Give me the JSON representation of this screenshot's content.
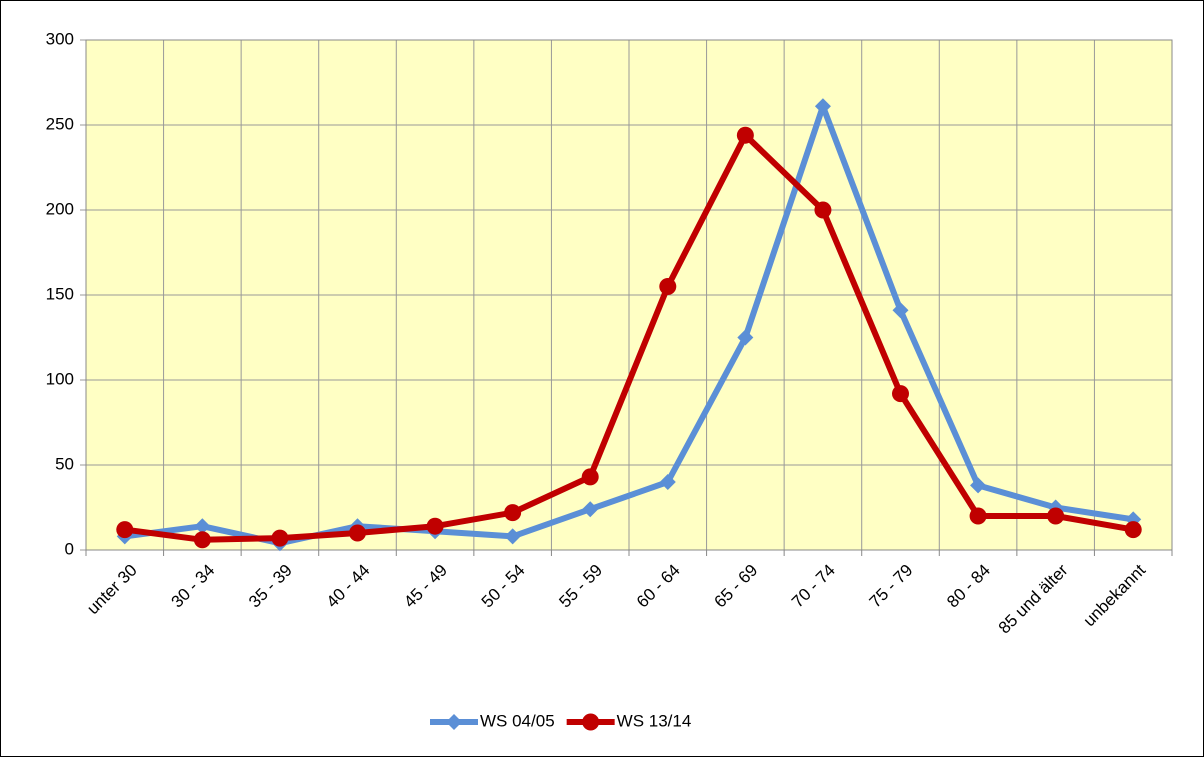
{
  "chart_data": {
    "type": "line",
    "categories": [
      "unter 30",
      "30 - 34",
      "35 - 39",
      "40 - 44",
      "45 - 49",
      "50 - 54",
      "55 - 59",
      "60 - 64",
      "65 - 69",
      "70 - 74",
      "75 - 79",
      "80 - 84",
      "85 und älter",
      "unbekannt"
    ],
    "series": [
      {
        "name": "WS 04/05",
        "color": "#5b8fd6",
        "marker": "diamond",
        "values": [
          8,
          14,
          4,
          14,
          11,
          8,
          24,
          40,
          125,
          261,
          141,
          38,
          25,
          18
        ]
      },
      {
        "name": "WS 13/14",
        "color": "#c00000",
        "marker": "circle",
        "values": [
          12,
          6,
          7,
          10,
          14,
          22,
          43,
          155,
          244,
          200,
          92,
          20,
          20,
          12
        ]
      }
    ],
    "ylim": [
      0,
      300
    ],
    "yticks": [
      0,
      50,
      100,
      150,
      200,
      250,
      300
    ],
    "grid": true,
    "legend": "bottom"
  }
}
